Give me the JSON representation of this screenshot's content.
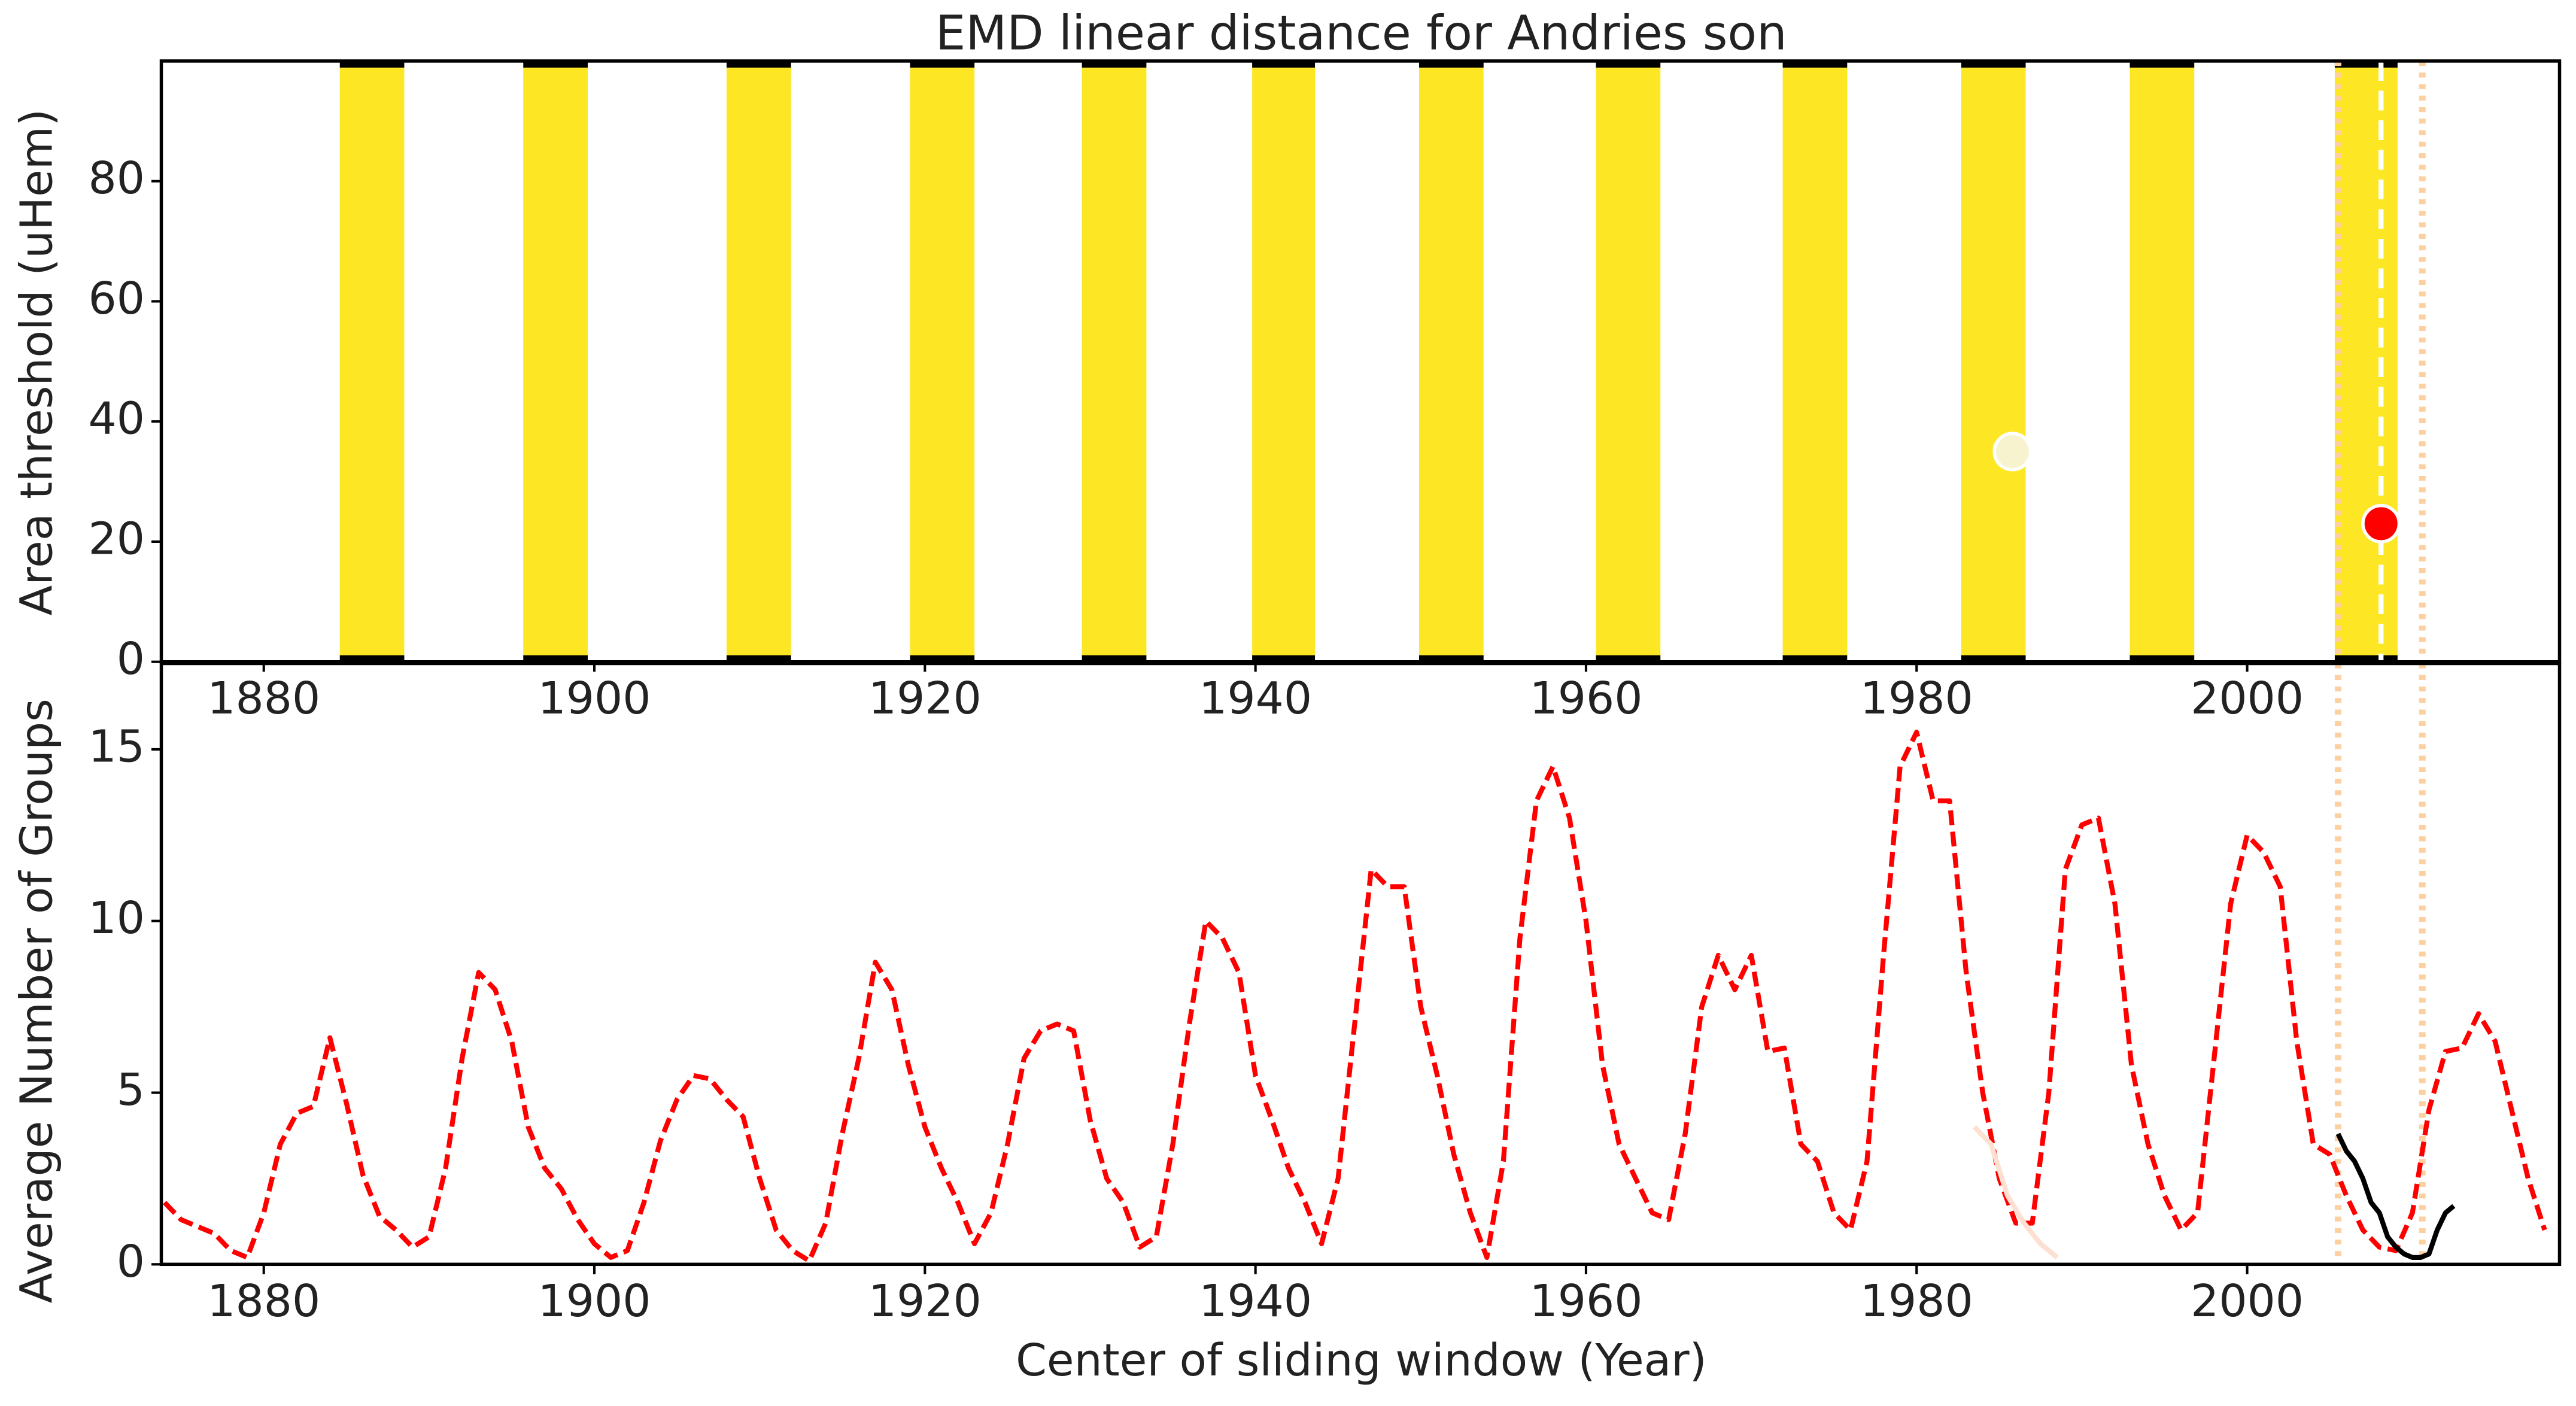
{
  "chart_data": [
    {
      "type": "bands",
      "title": "EMD linear distance for Andries son",
      "ylabel": "Area threshold (uHem)",
      "xlim": [
        1873.8,
        2018.9
      ],
      "ylim": [
        0,
        100
      ],
      "xticks": [
        1880,
        1900,
        1920,
        1940,
        1960,
        1980,
        2000
      ],
      "yticks": [
        0,
        20,
        40,
        60,
        80
      ],
      "bands": {
        "color": "#fde725",
        "ranges": [
          [
            1884.6,
            1888.5
          ],
          [
            1895.7,
            1899.6
          ],
          [
            1908.0,
            1911.9
          ],
          [
            1919.1,
            1923.0
          ],
          [
            1929.5,
            1933.4
          ],
          [
            1939.8,
            1943.6
          ],
          [
            1949.9,
            1953.8
          ],
          [
            1960.6,
            1964.5
          ],
          [
            1971.9,
            1975.8
          ],
          [
            1982.7,
            1986.6
          ],
          [
            1992.9,
            1996.8
          ],
          [
            2005.3,
            2009.1
          ]
        ]
      },
      "points": {
        "x": [
          1985.8,
          2008.1
        ],
        "y": [
          35,
          23
        ],
        "colors": [
          "#f7f3cf",
          "#ff0000"
        ]
      },
      "marker_line": {
        "x": 2008.1,
        "color": "#ffffff"
      },
      "vlines": {
        "x": [
          2005.5,
          2010.6
        ],
        "color": "#fdd0a2"
      }
    },
    {
      "type": "line",
      "ylabel": "Average Number of Groups",
      "xlabel": "Center of sliding window (Year)",
      "xlim": [
        1873.8,
        2018.9
      ],
      "ylim": [
        0,
        17.5
      ],
      "xticks": [
        1880,
        1900,
        1920,
        1940,
        1960,
        1980,
        2000
      ],
      "yticks": [
        0,
        5,
        10,
        15
      ],
      "vlines": {
        "x": [
          2005.5,
          2010.6
        ],
        "color": "#fdd0a2"
      },
      "series": [
        {
          "color": "#ff0000",
          "dashed": true,
          "x": [
            1874,
            1875,
            1876,
            1877,
            1878,
            1879,
            1880,
            1881,
            1882,
            1883,
            1884,
            1885,
            1886,
            1887,
            1888,
            1889,
            1890,
            1891,
            1892,
            1893,
            1894,
            1895,
            1896,
            1897,
            1898,
            1899,
            1900,
            1901,
            1902,
            1903,
            1904,
            1905,
            1906,
            1907,
            1908,
            1909,
            1910,
            1911,
            1912,
            1913,
            1914,
            1915,
            1916,
            1917,
            1918,
            1919,
            1920,
            1921,
            1922,
            1923,
            1924,
            1925,
            1926,
            1927,
            1928,
            1929,
            1930,
            1931,
            1932,
            1933,
            1934,
            1935,
            1936,
            1937,
            1938,
            1939,
            1940,
            1941,
            1942,
            1943,
            1944,
            1945,
            1946,
            1947,
            1948,
            1949,
            1950,
            1951,
            1952,
            1953,
            1954,
            1955,
            1956,
            1957,
            1958,
            1959,
            1960,
            1961,
            1962,
            1963,
            1964,
            1965,
            1966,
            1967,
            1968,
            1969,
            1970,
            1971,
            1972,
            1973,
            1974,
            1975,
            1976,
            1977,
            1978,
            1979,
            1980,
            1981,
            1982,
            1983,
            1984,
            1985,
            1986,
            1987,
            1988,
            1989,
            1990,
            1991,
            1992,
            1993,
            1994,
            1995,
            1996,
            1997,
            1998,
            1999,
            2000,
            2001,
            2002,
            2003,
            2004,
            2005,
            2006,
            2007,
            2008,
            2009,
            2010,
            2011,
            2012,
            2013,
            2014,
            2015,
            2016,
            2017,
            2018
          ],
          "values": [
            1.8,
            1.3,
            1.1,
            0.9,
            0.4,
            0.2,
            1.5,
            3.5,
            4.4,
            4.6,
            6.6,
            4.7,
            2.6,
            1.4,
            1.0,
            0.5,
            0.8,
            2.8,
            6.0,
            8.5,
            8.0,
            6.5,
            4.0,
            2.8,
            2.2,
            1.3,
            0.6,
            0.2,
            0.4,
            1.8,
            3.6,
            4.8,
            5.5,
            5.4,
            4.8,
            4.3,
            2.5,
            1.0,
            0.4,
            0.1,
            1.2,
            3.8,
            6.0,
            8.8,
            8.0,
            5.8,
            4.0,
            2.8,
            1.8,
            0.6,
            1.5,
            3.5,
            6.0,
            6.8,
            7.0,
            6.8,
            4.2,
            2.5,
            1.8,
            0.5,
            0.8,
            3.5,
            7.0,
            10.0,
            9.5,
            8.5,
            5.5,
            4.2,
            2.8,
            1.8,
            0.6,
            2.5,
            7.0,
            11.5,
            11.0,
            11.0,
            7.5,
            5.5,
            3.2,
            1.5,
            0.2,
            3.0,
            9.5,
            13.5,
            14.5,
            13.0,
            10.0,
            5.8,
            3.5,
            2.5,
            1.5,
            1.3,
            3.8,
            7.5,
            9.0,
            8.0,
            9.0,
            6.2,
            6.3,
            3.5,
            3.0,
            1.5,
            1.0,
            3.0,
            9.0,
            14.5,
            15.5,
            13.5,
            13.5,
            8.5,
            5.0,
            2.5,
            1.2,
            1.2,
            5.0,
            11.5,
            12.8,
            13.0,
            10.5,
            5.8,
            3.5,
            2.0,
            1.0,
            1.5,
            6.0,
            10.5,
            12.5,
            12.0,
            11.0,
            6.5,
            3.5,
            3.2,
            2.0,
            1.0,
            0.5,
            0.4,
            1.5,
            4.5,
            6.2,
            6.3,
            7.3,
            6.5,
            4.5,
            2.5,
            1.0
          ]
        },
        {
          "color": "#000000",
          "dashed": false,
          "x": [
            2005.5,
            2006,
            2006.5,
            2007,
            2007.5,
            2008,
            2008.5,
            2009,
            2009.5,
            2010,
            2010.5,
            2011,
            2011.5,
            2012,
            2012.5
          ],
          "values": [
            3.8,
            3.3,
            3.0,
            2.5,
            1.8,
            1.5,
            0.8,
            0.5,
            0.3,
            0.2,
            0.2,
            0.3,
            1.0,
            1.5,
            1.7
          ]
        },
        {
          "color": "#fde0d2",
          "dashed": false,
          "x": [
            1983.5,
            1984.5,
            1985.5,
            1986.5,
            1987.5,
            1988.5
          ],
          "values": [
            4.0,
            3.5,
            2.0,
            1.2,
            0.6,
            0.2
          ]
        }
      ]
    }
  ]
}
